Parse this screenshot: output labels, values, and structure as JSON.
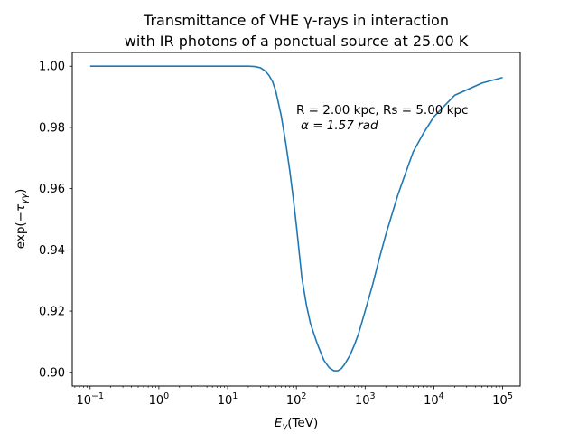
{
  "chart_data": {
    "type": "line",
    "title_line1": "Transmittance of VHE γ-rays in interaction",
    "title_line2": "with IR photons of a ponctual source at 25.00 K",
    "xlabel": "E_γ(TeV)",
    "ylabel": "exp(−τ_γγ)",
    "x_scale": "log",
    "xlim": [
      0.055,
      180000
    ],
    "ylim": [
      0.8955,
      1.0045
    ],
    "x_ticks": [
      {
        "value": 0.1,
        "base": "10",
        "exp": "−1"
      },
      {
        "value": 1,
        "base": "10",
        "exp": "0"
      },
      {
        "value": 10,
        "base": "10",
        "exp": "1"
      },
      {
        "value": 100,
        "base": "10",
        "exp": "2"
      },
      {
        "value": 1000,
        "base": "10",
        "exp": "3"
      },
      {
        "value": 10000,
        "base": "10",
        "exp": "4"
      },
      {
        "value": 100000,
        "base": "10",
        "exp": "5"
      }
    ],
    "y_ticks": [
      {
        "value": 0.9,
        "label": "0.90"
      },
      {
        "value": 0.92,
        "label": "0.92"
      },
      {
        "value": 0.94,
        "label": "0.94"
      },
      {
        "value": 0.96,
        "label": "0.96"
      },
      {
        "value": 0.98,
        "label": "0.98"
      },
      {
        "value": 1.0,
        "label": "1.00"
      }
    ],
    "grid": false,
    "annotation_line1": "R = 2.00 kpc, Rs = 5.00 kpc",
    "annotation_line2": "α = 1.57 rad",
    "series": [
      {
        "color": "#1f77b4",
        "x": [
          0.1,
          1,
          10,
          20,
          25,
          30,
          35,
          40,
          45,
          50,
          60,
          70,
          80,
          90,
          100,
          120,
          140,
          160,
          200,
          250,
          300,
          350,
          400,
          450,
          500,
          600,
          700,
          800,
          1000,
          1300,
          1600,
          2000,
          3000,
          4000,
          5000,
          7000,
          10000,
          20000,
          50000,
          100000
        ],
        "y": [
          1.0,
          1.0,
          1.0,
          1.0,
          0.9999,
          0.9995,
          0.9985,
          0.997,
          0.995,
          0.992,
          0.984,
          0.975,
          0.966,
          0.957,
          0.948,
          0.931,
          0.922,
          0.916,
          0.9095,
          0.904,
          0.9015,
          0.9005,
          0.9005,
          0.9012,
          0.9025,
          0.9055,
          0.909,
          0.9125,
          0.92,
          0.929,
          0.937,
          0.945,
          0.958,
          0.966,
          0.972,
          0.978,
          0.9835,
          0.9905,
          0.9945,
          0.9963
        ]
      }
    ]
  }
}
